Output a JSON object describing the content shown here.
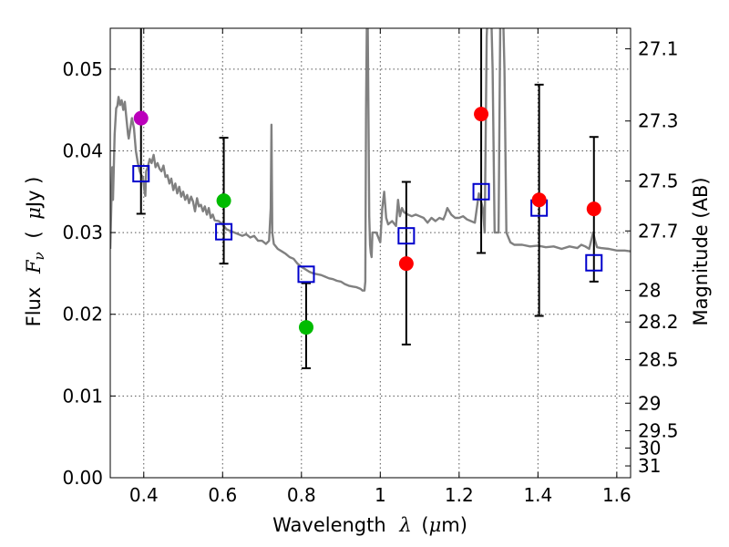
{
  "chart_data": {
    "type": "scatter",
    "xlabel": "Wavelength",
    "xlabel_symbol": "λ",
    "xlabel_unit_open": "(",
    "xlabel_unit_mu": "μ",
    "xlabel_unit_rest": "m)",
    "ylabel": "Flux",
    "ylabel_symbol": "F",
    "ylabel_sub": "ν",
    "ylabel_unit_open": "(",
    "ylabel_unit_mu": "μ",
    "ylabel_unit_rest": "Jy )",
    "y2label": "Magnitude (AB)",
    "xlim": [
      0.315,
      1.635
    ],
    "ylim": [
      0.0,
      0.055
    ],
    "grid": true,
    "x_ticks": [
      0.4,
      0.6,
      0.8,
      1.0,
      1.2,
      1.4,
      1.6
    ],
    "x_tick_labels": [
      "0.4",
      "0.6",
      "0.8",
      "1",
      "1.2",
      "1.4",
      "1.6"
    ],
    "y_ticks": [
      0.0,
      0.01,
      0.02,
      0.03,
      0.04,
      0.05
    ],
    "y_tick_labels": [
      "0.00",
      "0.01",
      "0.02",
      "0.03",
      "0.04",
      "0.05"
    ],
    "mag_ticks": [
      27.1,
      27.3,
      27.5,
      27.7,
      28,
      28.2,
      28.5,
      29,
      29.5,
      30,
      31
    ],
    "mag_tick_labels": [
      "27.1",
      "27.3",
      "27.5",
      "27.7",
      "28",
      "28.2",
      "28.5",
      "29",
      "29.5",
      "30",
      "31"
    ],
    "model_spectrum": {
      "name": "model SED",
      "color": "#808080",
      "x": [
        0.315,
        0.32,
        0.322,
        0.326,
        0.33,
        0.333,
        0.336,
        0.34,
        0.344,
        0.348,
        0.352,
        0.356,
        0.36,
        0.362,
        0.365,
        0.37,
        0.375,
        0.38,
        0.385,
        0.39,
        0.394,
        0.398,
        0.402,
        0.404,
        0.406,
        0.41,
        0.415,
        0.42,
        0.425,
        0.43,
        0.435,
        0.44,
        0.445,
        0.45,
        0.455,
        0.46,
        0.465,
        0.47,
        0.475,
        0.48,
        0.485,
        0.49,
        0.495,
        0.5,
        0.505,
        0.51,
        0.515,
        0.52,
        0.525,
        0.53,
        0.535,
        0.54,
        0.545,
        0.55,
        0.555,
        0.56,
        0.565,
        0.57,
        0.575,
        0.58,
        0.59,
        0.6,
        0.61,
        0.62,
        0.63,
        0.64,
        0.65,
        0.66,
        0.67,
        0.68,
        0.69,
        0.7,
        0.71,
        0.718,
        0.722,
        0.724,
        0.726,
        0.73,
        0.74,
        0.75,
        0.76,
        0.77,
        0.78,
        0.79,
        0.8,
        0.81,
        0.82,
        0.83,
        0.84,
        0.85,
        0.86,
        0.87,
        0.88,
        0.89,
        0.9,
        0.91,
        0.92,
        0.93,
        0.94,
        0.95,
        0.955,
        0.96,
        0.962,
        0.964,
        0.966,
        0.968,
        0.97,
        0.972,
        0.974,
        0.976,
        0.978,
        0.98,
        0.99,
        1.0,
        1.005,
        1.01,
        1.015,
        1.02,
        1.03,
        1.04,
        1.045,
        1.05,
        1.055,
        1.06,
        1.07,
        1.08,
        1.09,
        1.1,
        1.11,
        1.12,
        1.13,
        1.14,
        1.15,
        1.16,
        1.165,
        1.17,
        1.18,
        1.19,
        1.2,
        1.21,
        1.22,
        1.23,
        1.24,
        1.25,
        1.26,
        1.265,
        1.27,
        1.275,
        1.28,
        1.285,
        1.29,
        1.295,
        1.3,
        1.305,
        1.31,
        1.315,
        1.32,
        1.33,
        1.34,
        1.36,
        1.38,
        1.4,
        1.42,
        1.44,
        1.46,
        1.48,
        1.5,
        1.51,
        1.52,
        1.53,
        1.535,
        1.54,
        1.545,
        1.55,
        1.56,
        1.58,
        1.6,
        1.62,
        1.635
      ],
      "y": [
        0.028,
        0.038,
        0.034,
        0.042,
        0.0452,
        0.0455,
        0.0466,
        0.0456,
        0.0462,
        0.045,
        0.046,
        0.044,
        0.042,
        0.0415,
        0.0425,
        0.044,
        0.0428,
        0.04,
        0.0385,
        0.0375,
        0.037,
        0.0368,
        0.035,
        0.0345,
        0.0375,
        0.038,
        0.039,
        0.0385,
        0.0395,
        0.038,
        0.0385,
        0.0378,
        0.0375,
        0.0382,
        0.0368,
        0.037,
        0.036,
        0.0366,
        0.0352,
        0.036,
        0.0348,
        0.0356,
        0.0344,
        0.035,
        0.034,
        0.0346,
        0.0336,
        0.0344,
        0.0338,
        0.0326,
        0.0342,
        0.0332,
        0.0334,
        0.0326,
        0.0332,
        0.0322,
        0.033,
        0.0318,
        0.0322,
        0.0315,
        0.0314,
        0.031,
        0.0304,
        0.0302,
        0.03,
        0.0298,
        0.0296,
        0.0298,
        0.0294,
        0.0296,
        0.029,
        0.029,
        0.0286,
        0.029,
        0.033,
        0.0432,
        0.03,
        0.0286,
        0.028,
        0.0277,
        0.0274,
        0.027,
        0.0268,
        0.0262,
        0.0258,
        0.0255,
        0.0252,
        0.025,
        0.0249,
        0.0248,
        0.0246,
        0.0244,
        0.0243,
        0.0241,
        0.024,
        0.0237,
        0.0235,
        0.0234,
        0.0233,
        0.0231,
        0.0229,
        0.0229,
        0.024,
        0.045,
        0.056,
        0.056,
        0.045,
        0.032,
        0.0285,
        0.0275,
        0.027,
        0.03,
        0.03,
        0.0288,
        0.033,
        0.035,
        0.0318,
        0.031,
        0.0314,
        0.0308,
        0.034,
        0.032,
        0.033,
        0.0325,
        0.0322,
        0.032,
        0.0322,
        0.032,
        0.0318,
        0.0312,
        0.0318,
        0.0314,
        0.0318,
        0.0316,
        0.0322,
        0.033,
        0.0322,
        0.0318,
        0.0318,
        0.032,
        0.0316,
        0.0314,
        0.0312,
        0.0348,
        0.033,
        0.03,
        0.054,
        0.06,
        0.06,
        0.05,
        0.03,
        0.03,
        0.03,
        0.06,
        0.06,
        0.05,
        0.03,
        0.0288,
        0.0285,
        0.0285,
        0.0283,
        0.0284,
        0.0282,
        0.0283,
        0.028,
        0.0283,
        0.0281,
        0.0285,
        0.0283,
        0.028,
        0.029,
        0.03,
        0.029,
        0.0282,
        0.0281,
        0.028,
        0.0278,
        0.0278,
        0.0277
      ]
    },
    "series": [
      {
        "name": "model photometry",
        "marker": "open-square",
        "color": "#0000cc",
        "x": [
          0.393,
          0.603,
          0.812,
          1.066,
          1.256,
          1.403,
          1.542
        ],
        "y": [
          0.0372,
          0.0301,
          0.0249,
          0.0296,
          0.035,
          0.033,
          0.0263
        ]
      },
      {
        "name": "observed photometry",
        "marker": "filled-circle",
        "x": [
          0.393,
          0.603,
          0.812,
          1.066,
          1.256,
          1.403,
          1.542
        ],
        "y": [
          0.044,
          0.0339,
          0.0184,
          0.0262,
          0.0445,
          0.034,
          0.0329
        ],
        "colors": [
          "#bb00bb",
          "#00bb00",
          "#00bb00",
          "#ff0000",
          "#ff0000",
          "#ff0000",
          "#ff0000"
        ],
        "yerr_low": [
          0.0323,
          0.0262,
          0.0134,
          0.0163,
          0.0275,
          0.0198,
          0.024
        ],
        "yerr_high": [
          0.056,
          0.0416,
          0.0238,
          0.0362,
          0.056,
          0.0481,
          0.0417
        ]
      }
    ]
  }
}
